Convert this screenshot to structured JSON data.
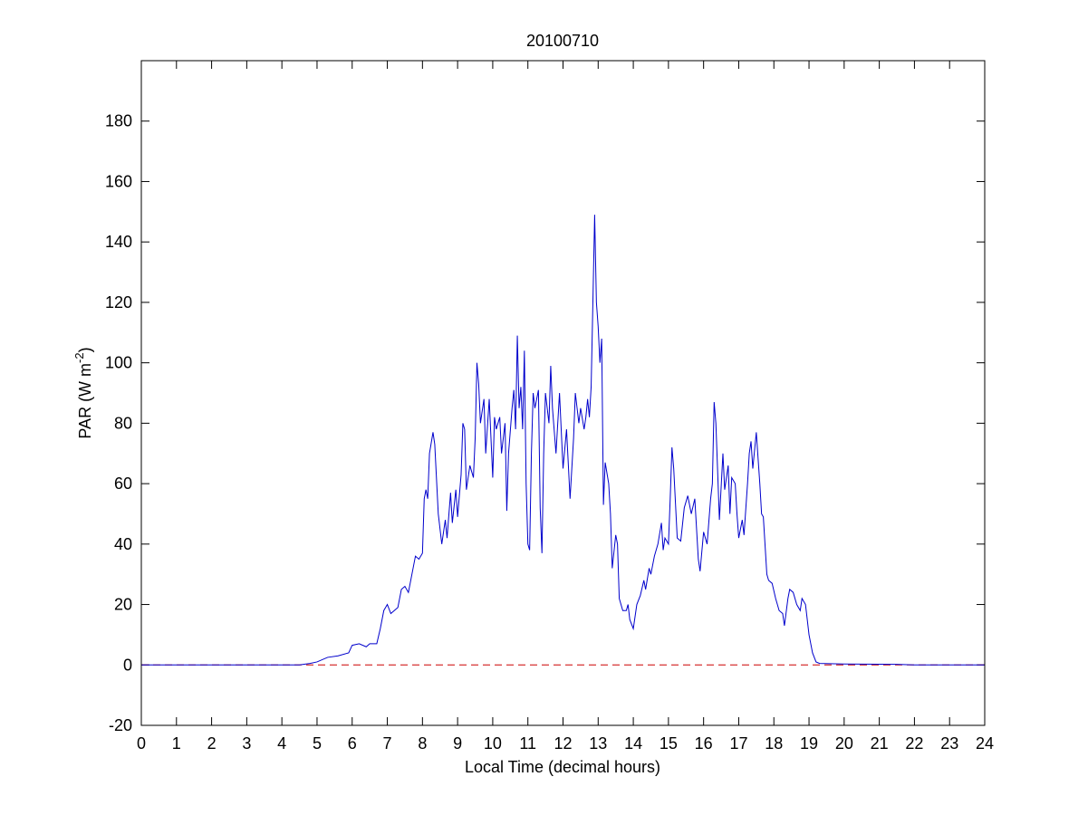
{
  "chart_data": {
    "type": "line",
    "title": "20100710",
    "xlabel": "Local Time (decimal hours)",
    "ylabel": {
      "base": "PAR (W m",
      "superscript": "-2",
      "end": ")"
    },
    "x": [
      0,
      4.5,
      4.8,
      5.0,
      5.3,
      5.6,
      5.9,
      6.0,
      6.2,
      6.4,
      6.5,
      6.7,
      6.8,
      6.9,
      7.0,
      7.1,
      7.3,
      7.4,
      7.5,
      7.6,
      7.7,
      7.8,
      7.9,
      8.0,
      8.05,
      8.1,
      8.15,
      8.2,
      8.3,
      8.35,
      8.45,
      8.55,
      8.65,
      8.7,
      8.8,
      8.85,
      8.95,
      9.0,
      9.1,
      9.15,
      9.2,
      9.25,
      9.35,
      9.45,
      9.5,
      9.55,
      9.6,
      9.65,
      9.75,
      9.8,
      9.9,
      10.0,
      10.05,
      10.1,
      10.2,
      10.25,
      10.35,
      10.4,
      10.45,
      10.55,
      10.6,
      10.65,
      10.7,
      10.75,
      10.8,
      10.85,
      10.9,
      10.95,
      11.0,
      11.05,
      11.1,
      11.15,
      11.2,
      11.3,
      11.35,
      11.4,
      11.45,
      11.5,
      11.6,
      11.65,
      11.7,
      11.8,
      11.9,
      12.0,
      12.1,
      12.2,
      12.3,
      12.35,
      12.45,
      12.5,
      12.6,
      12.65,
      12.7,
      12.75,
      12.8,
      12.85,
      12.9,
      12.95,
      13.0,
      13.05,
      13.1,
      13.15,
      13.2,
      13.3,
      13.35,
      13.4,
      13.5,
      13.55,
      13.6,
      13.7,
      13.8,
      13.85,
      13.9,
      14.0,
      14.1,
      14.2,
      14.3,
      14.35,
      14.45,
      14.5,
      14.6,
      14.7,
      14.8,
      14.85,
      14.9,
      15.0,
      15.05,
      15.1,
      15.15,
      15.25,
      15.35,
      15.45,
      15.55,
      15.65,
      15.75,
      15.85,
      15.9,
      16.0,
      16.1,
      16.2,
      16.25,
      16.3,
      16.35,
      16.45,
      16.55,
      16.6,
      16.7,
      16.75,
      16.8,
      16.9,
      16.95,
      17.0,
      17.05,
      17.1,
      17.15,
      17.25,
      17.3,
      17.35,
      17.4,
      17.5,
      17.6,
      17.65,
      17.7,
      17.8,
      17.85,
      17.95,
      18.05,
      18.15,
      18.25,
      18.3,
      18.4,
      18.45,
      18.55,
      18.65,
      18.75,
      18.8,
      18.9,
      19.0,
      19.1,
      19.2,
      19.3,
      20,
      21.5,
      22,
      24
    ],
    "series": [
      {
        "name": "PAR",
        "color": "#0000cc",
        "values": [
          0,
          0,
          0.5,
          1,
          2.5,
          3,
          4,
          6.5,
          7,
          6,
          7,
          7,
          12,
          18,
          20,
          17,
          19,
          25,
          26,
          24,
          30,
          36,
          35,
          37,
          55,
          58,
          55,
          70,
          77,
          73,
          50,
          40,
          48,
          42,
          57,
          47,
          58,
          49,
          63,
          80,
          78,
          58,
          66,
          62,
          75,
          100,
          93,
          80,
          88,
          70,
          88,
          62,
          82,
          78,
          82,
          70,
          80,
          51,
          70,
          85,
          91,
          78,
          109,
          85,
          92,
          78,
          104,
          60,
          40,
          38,
          70,
          90,
          85,
          91,
          52,
          37,
          70,
          90,
          80,
          99,
          85,
          70,
          90,
          65,
          78,
          55,
          75,
          90,
          80,
          85,
          78,
          82,
          88,
          82,
          92,
          120,
          149,
          120,
          112,
          100,
          108,
          53,
          67,
          60,
          50,
          32,
          43,
          40,
          22,
          18,
          18,
          20,
          15,
          12,
          20,
          23,
          28,
          25,
          32,
          30,
          36,
          40,
          47,
          38,
          42,
          40,
          55,
          72,
          65,
          42,
          41,
          52,
          56,
          50,
          55,
          35,
          31,
          44,
          40,
          55,
          60,
          87,
          80,
          48,
          70,
          58,
          66,
          50,
          62,
          60,
          50,
          42,
          45,
          48,
          43,
          60,
          70,
          74,
          65,
          77,
          60,
          50,
          49,
          30,
          28,
          27,
          22,
          18,
          17,
          13,
          22,
          25,
          24,
          20,
          18,
          22,
          20,
          10,
          4,
          1,
          0.5,
          0.3,
          0.2,
          0,
          0
        ]
      }
    ],
    "reference_line": {
      "value": 0,
      "color": "#cc0000",
      "style": "dashed"
    },
    "xlim": [
      0,
      24
    ],
    "xticks": [
      0,
      1,
      2,
      3,
      4,
      5,
      6,
      7,
      8,
      9,
      10,
      11,
      12,
      13,
      14,
      15,
      16,
      17,
      18,
      19,
      20,
      21,
      22,
      23,
      24
    ],
    "ylim": [
      -20,
      200
    ],
    "yticks": [
      -20,
      0,
      20,
      40,
      60,
      80,
      100,
      120,
      140,
      160,
      180
    ]
  }
}
